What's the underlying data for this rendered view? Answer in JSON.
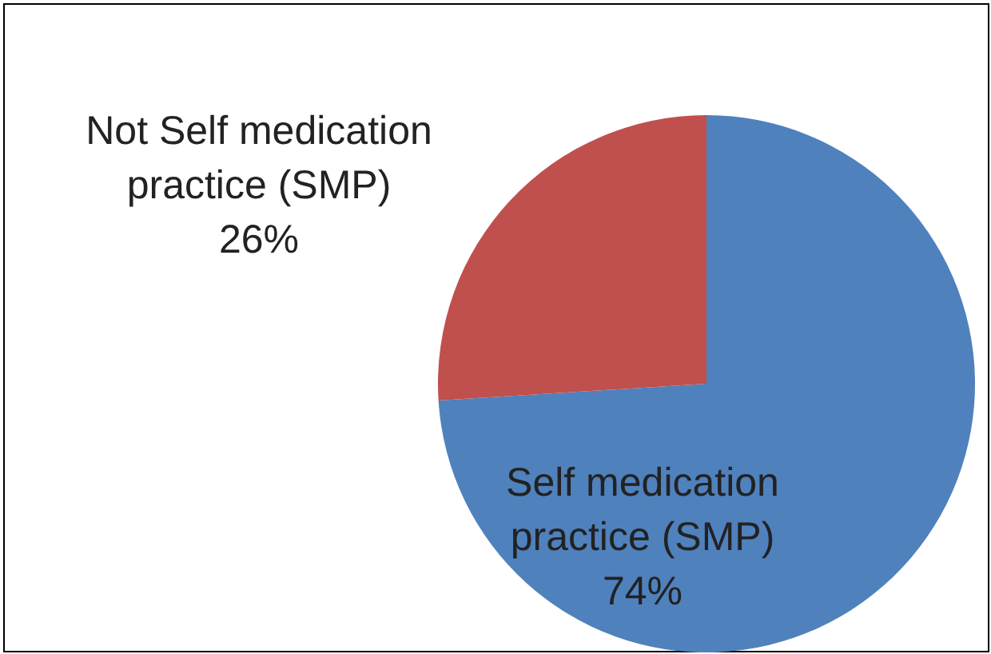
{
  "chart_data": {
    "type": "pie",
    "categories": [
      "Self medication practice (SMP)",
      "Not Self medication practice (SMP)"
    ],
    "values": [
      74,
      26
    ],
    "value_labels": [
      "74%",
      "26%"
    ],
    "colors": [
      "#4f81bd",
      "#c0504d"
    ]
  }
}
